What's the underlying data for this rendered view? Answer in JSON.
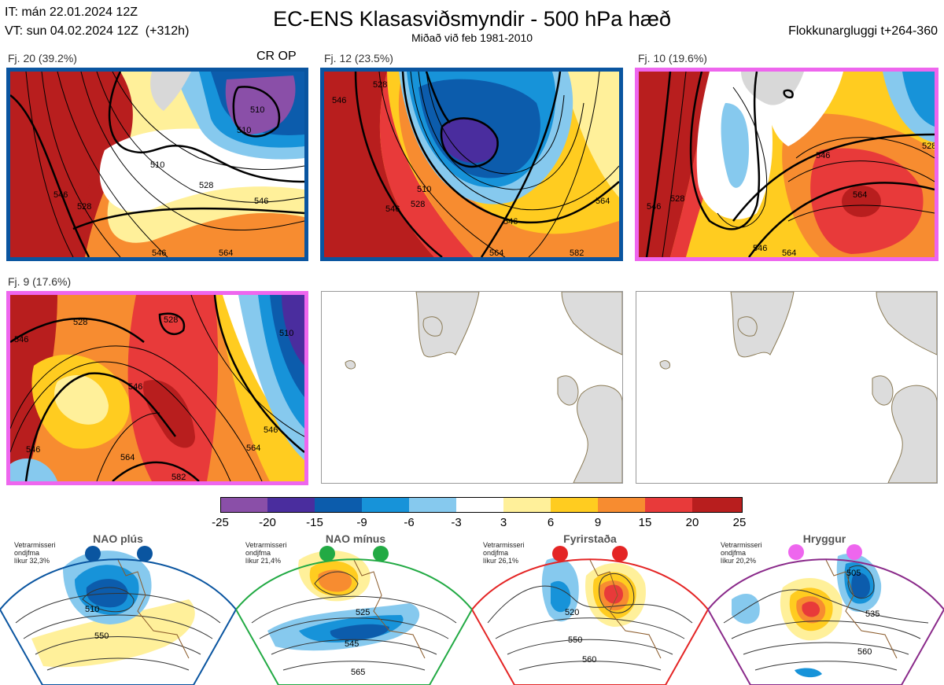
{
  "header": {
    "it_line": "IT: mán 22.01.2024 12Z",
    "vt_line": "VT: sun 04.02.2024 12Z",
    "vt_hours": "(+312h)",
    "title": "EC-ENS Klasasviðsmyndir - 500 hPa hæð",
    "subtitle": "Miðað við feb 1981-2010",
    "window": "Flokkunargluggi t+264-360"
  },
  "clusters": [
    {
      "label": "Fj. 20 (39.2%)",
      "members": 20,
      "percent": 39.2,
      "badge": "CR OP",
      "regime": "NAO plús",
      "frame_color": "#0a55a0",
      "contour_labels": [
        "510",
        "510",
        "510",
        "528",
        "528",
        "546",
        "546",
        "546",
        "564"
      ]
    },
    {
      "label": "Fj. 12 (23.5%)",
      "members": 12,
      "percent": 23.5,
      "badge": "",
      "regime": "NAO plús",
      "frame_color": "#0a55a0",
      "contour_labels": [
        "528",
        "546",
        "510",
        "528",
        "546",
        "546",
        "564",
        "564",
        "582"
      ]
    },
    {
      "label": "Fj. 10 (19.6%)",
      "members": 10,
      "percent": 19.6,
      "badge": "",
      "regime": "Hryggur",
      "frame_color": "#ee66ee",
      "contour_labels": [
        "528",
        "546",
        "528",
        "546",
        "546",
        "564",
        "564"
      ]
    },
    {
      "label": "Fj. 9 (17.6%)",
      "members": 9,
      "percent": 17.6,
      "badge": "",
      "regime": "Hryggur",
      "frame_color": "#ee66ee",
      "contour_labels": [
        "546",
        "528",
        "528",
        "546",
        "546",
        "510",
        "546",
        "564",
        "564",
        "582"
      ]
    }
  ],
  "colorbar": {
    "ticks": [
      "-25",
      "-20",
      "-15",
      "-9",
      "-6",
      "-3",
      "3",
      "6",
      "9",
      "15",
      "20",
      "25"
    ],
    "colors": [
      "#8a4fa8",
      "#4a2d9e",
      "#0c5cac",
      "#1793d9",
      "#86c9ee",
      "#ffffff",
      "#fff09a",
      "#ffcc20",
      "#f78c30",
      "#e83a3a",
      "#b81e1e"
    ]
  },
  "regimes": [
    {
      "name": "NAO plús",
      "note_lines": [
        "Vetrarmisseri",
        "ondjfma",
        "líkur 32,3%"
      ],
      "color": "#0a55a0",
      "contour_labels": [
        "510",
        "550"
      ]
    },
    {
      "name": "NAO mínus",
      "note_lines": [
        "Vetrarmisseri",
        "ondjfma",
        "líkur 21,4%"
      ],
      "color": "#22aa44",
      "contour_labels": [
        "525",
        "545",
        "565"
      ]
    },
    {
      "name": "Fyrirstaða",
      "note_lines": [
        "Vetrarmisseri",
        "ondjfma",
        "líkur 26,1%"
      ],
      "color": "#e42525",
      "contour_labels": [
        "520",
        "550",
        "560"
      ]
    },
    {
      "name": "Hryggur",
      "note_lines": [
        "Vetrarmisseri",
        "ondjfma",
        "líkur 20,2%"
      ],
      "color": "#8a2a8a",
      "contour_labels": [
        "505",
        "535",
        "560"
      ]
    }
  ]
}
